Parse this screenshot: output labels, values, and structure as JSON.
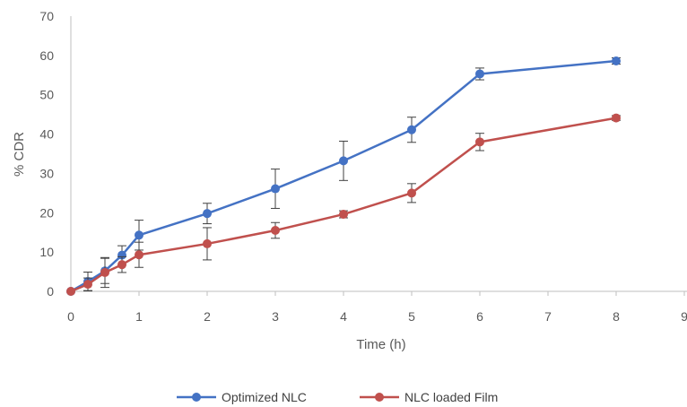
{
  "chart_data": {
    "type": "line",
    "xlabel": "Time (h)",
    "ylabel": "% CDR",
    "xlim": [
      0,
      9
    ],
    "ylim": [
      0,
      70
    ],
    "xticks": [
      0,
      1,
      2,
      3,
      4,
      5,
      6,
      7,
      8,
      9
    ],
    "yticks": [
      0,
      10,
      20,
      30,
      40,
      50,
      60,
      70
    ],
    "grid": false,
    "legend_position": "bottom",
    "x": [
      0,
      0.25,
      0.5,
      0.75,
      1,
      2,
      3,
      4,
      5,
      6,
      8
    ],
    "series": [
      {
        "name": "Optimized NLC",
        "color": "#4472C4",
        "values": [
          0,
          2.5,
          5.2,
          9.2,
          14.3,
          19.8,
          26.1,
          33.2,
          41.1,
          55.3,
          58.6
        ],
        "errors": [
          0,
          2.4,
          3.2,
          2.4,
          3.8,
          2.6,
          5.0,
          5.0,
          3.2,
          1.5,
          0.8
        ]
      },
      {
        "name": "NLC loaded Film",
        "color": "#C0504D",
        "values": [
          0,
          1.8,
          4.8,
          6.8,
          9.3,
          12.1,
          15.5,
          19.6,
          25.0,
          38.0,
          44.1
        ],
        "errors": [
          0,
          1.6,
          3.8,
          2.0,
          3.2,
          4.1,
          2.0,
          0.9,
          2.4,
          2.2,
          0.6
        ]
      }
    ]
  }
}
